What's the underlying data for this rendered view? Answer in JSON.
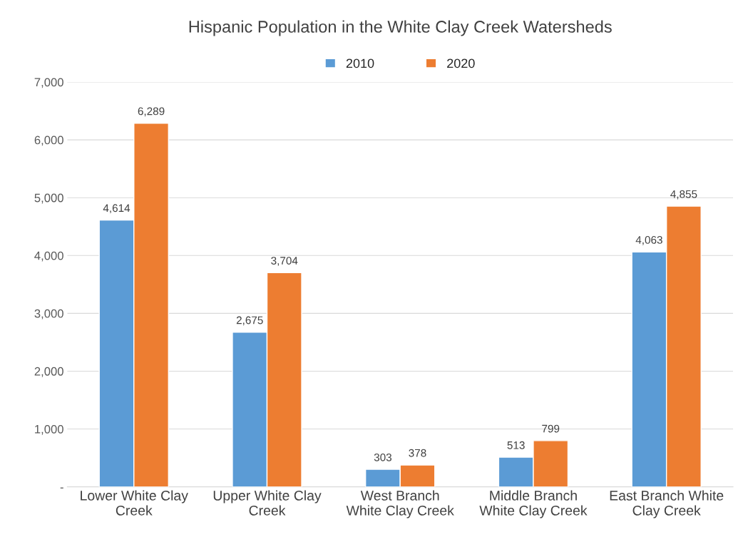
{
  "chart_data": {
    "type": "bar",
    "title": "Hispanic Population in the White Clay Creek Watersheds",
    "categories": [
      "Lower White Clay\nCreek",
      "Upper White Clay\nCreek",
      "West Branch\nWhite Clay Creek",
      "Middle Branch\nWhite Clay Creek",
      "East Branch White\nClay Creek"
    ],
    "series": [
      {
        "name": "2010",
        "color": "#5b9bd5",
        "values": [
          4614,
          2675,
          303,
          513,
          4063
        ],
        "value_labels": [
          "4,614",
          "2,675",
          "303",
          "513",
          "4,063"
        ]
      },
      {
        "name": "2020",
        "color": "#ed7d31",
        "values": [
          6289,
          3704,
          378,
          799,
          4855
        ],
        "value_labels": [
          "6,289",
          "3,704",
          "378",
          "799",
          "4,855"
        ]
      }
    ],
    "ylim": [
      0,
      7000
    ],
    "yticks": [
      {
        "value": 0,
        "label": "-"
      },
      {
        "value": 1000,
        "label": "1,000"
      },
      {
        "value": 2000,
        "label": "2,000"
      },
      {
        "value": 3000,
        "label": "3,000"
      },
      {
        "value": 4000,
        "label": "4,000"
      },
      {
        "value": 5000,
        "label": "5,000"
      },
      {
        "value": 6000,
        "label": "6,000"
      },
      {
        "value": 7000,
        "label": "7,000"
      }
    ],
    "grid": "y",
    "legend": "top"
  }
}
